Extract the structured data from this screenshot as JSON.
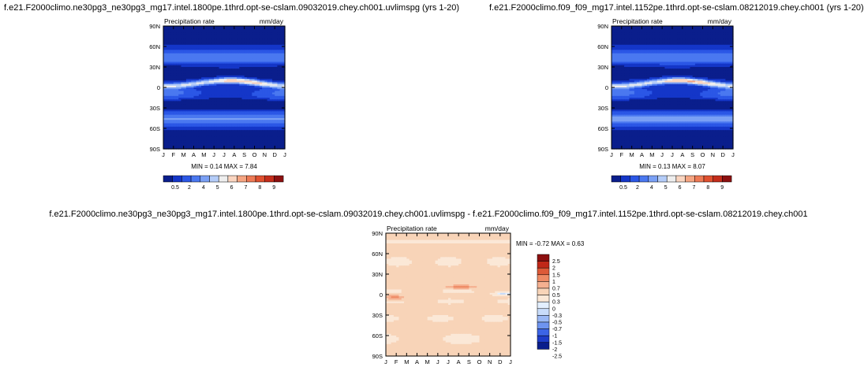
{
  "titles": {
    "left": "f.e21.F2000climo.ne30pg3_ne30pg3_mg17.intel.1800pe.1thrd.opt-se-cslam.09032019.chey.ch001.uvlimspg (yrs 1-20)",
    "right": "f.e21.F2000climo.f09_f09_mg17.intel.1152pe.1thrd.opt-se-cslam.08212019.chey.ch001 (yrs 1-20)",
    "diff": "f.e21.F2000climo.ne30pg3_ne30pg3_mg17.intel.1800pe.1thrd.opt-se-cslam.09032019.chey.ch001.uvlimspg - f.e21.F2000climo.f09_f09_mg17.intel.1152pe.1thrd.opt-se-cslam.08212019.chey.ch001"
  },
  "colors": {
    "seq": [
      "#0a1e8c",
      "#1436c8",
      "#2b57e6",
      "#4a78f0",
      "#7aa0f5",
      "#b4ccf8",
      "#eeeeee",
      "#fad5c0",
      "#f5a582",
      "#ee7a55",
      "#e0502f",
      "#c42d1b",
      "#8c1010"
    ],
    "div": [
      "#0a1e8c",
      "#1e3cc8",
      "#3c64e6",
      "#6e94f0",
      "#9ab8f5",
      "#c8dcfa",
      "#e3efff",
      "#fbe8d7",
      "#f8d4b8",
      "#f5b090",
      "#ee8a64",
      "#dd5a38",
      "#c02818",
      "#8c0f0f"
    ]
  },
  "chart_data": [
    {
      "id": "left",
      "type": "heatmap",
      "subtitle_left": "Precipitation rate",
      "subtitle_right": "mm/day",
      "x_ticks": [
        "J",
        "F",
        "M",
        "A",
        "M",
        "J",
        "J",
        "A",
        "S",
        "O",
        "N",
        "D",
        "J"
      ],
      "y_ticks": [
        "90N",
        "60N",
        "30N",
        "0",
        "30S",
        "60S",
        "90S"
      ],
      "y_values": [
        90,
        60,
        30,
        0,
        -30,
        -60,
        -90
      ],
      "stats_text": "MIN =   0.14 MAX =   7.84",
      "min": 0.14,
      "max": 7.84,
      "levels": [
        "0.5",
        "1",
        "1.5",
        "2",
        "3",
        "4",
        "5",
        "6",
        "7",
        "8",
        "9"
      ],
      "legend_labels": [
        "0.5",
        "2",
        "4",
        "5",
        "6",
        "7",
        "8",
        "9"
      ],
      "features": {
        "itcz_peak": 7.84,
        "itcz_peak_month": "Jul",
        "itcz_lat": 8
      }
    },
    {
      "id": "right",
      "type": "heatmap",
      "subtitle_left": "Precipitation rate",
      "subtitle_right": "mm/day",
      "x_ticks": [
        "J",
        "F",
        "M",
        "A",
        "M",
        "J",
        "J",
        "A",
        "S",
        "O",
        "N",
        "D",
        "J"
      ],
      "y_ticks": [
        "90N",
        "60N",
        "30N",
        "0",
        "30S",
        "60S",
        "90S"
      ],
      "y_values": [
        90,
        60,
        30,
        0,
        -30,
        -60,
        -90
      ],
      "stats_text": "MIN =   0.13 MAX =   8.07",
      "min": 0.13,
      "max": 8.07,
      "levels": [
        "0.5",
        "1",
        "1.5",
        "2",
        "3",
        "4",
        "5",
        "6",
        "7",
        "8",
        "9"
      ],
      "legend_labels": [
        "0.5",
        "2",
        "4",
        "5",
        "6",
        "7",
        "8",
        "9"
      ],
      "features": {
        "itcz_peak": 8.07,
        "itcz_peak_month": "Jul",
        "itcz_lat": 8
      }
    },
    {
      "id": "diff",
      "type": "heatmap",
      "subtitle_left": "Precipitation rate",
      "subtitle_right": "mm/day",
      "x_ticks": [
        "J",
        "F",
        "M",
        "A",
        "M",
        "J",
        "J",
        "A",
        "S",
        "O",
        "N",
        "D",
        "J"
      ],
      "y_ticks": [
        "90N",
        "60N",
        "30N",
        "0",
        "30S",
        "60S",
        "90S"
      ],
      "y_values": [
        90,
        60,
        30,
        0,
        -30,
        -60,
        -90
      ],
      "stats_text": "MIN =  -0.72 MAX =   0.63",
      "min": -0.72,
      "max": 0.63,
      "legend_labels": [
        "2.5",
        "2",
        "1.5",
        "1",
        "0.7",
        "0.5",
        "0.3",
        "0",
        "-0.3",
        "-0.5",
        "-0.7",
        "-1",
        "-1.5",
        "-2",
        "-2.5"
      ]
    }
  ]
}
